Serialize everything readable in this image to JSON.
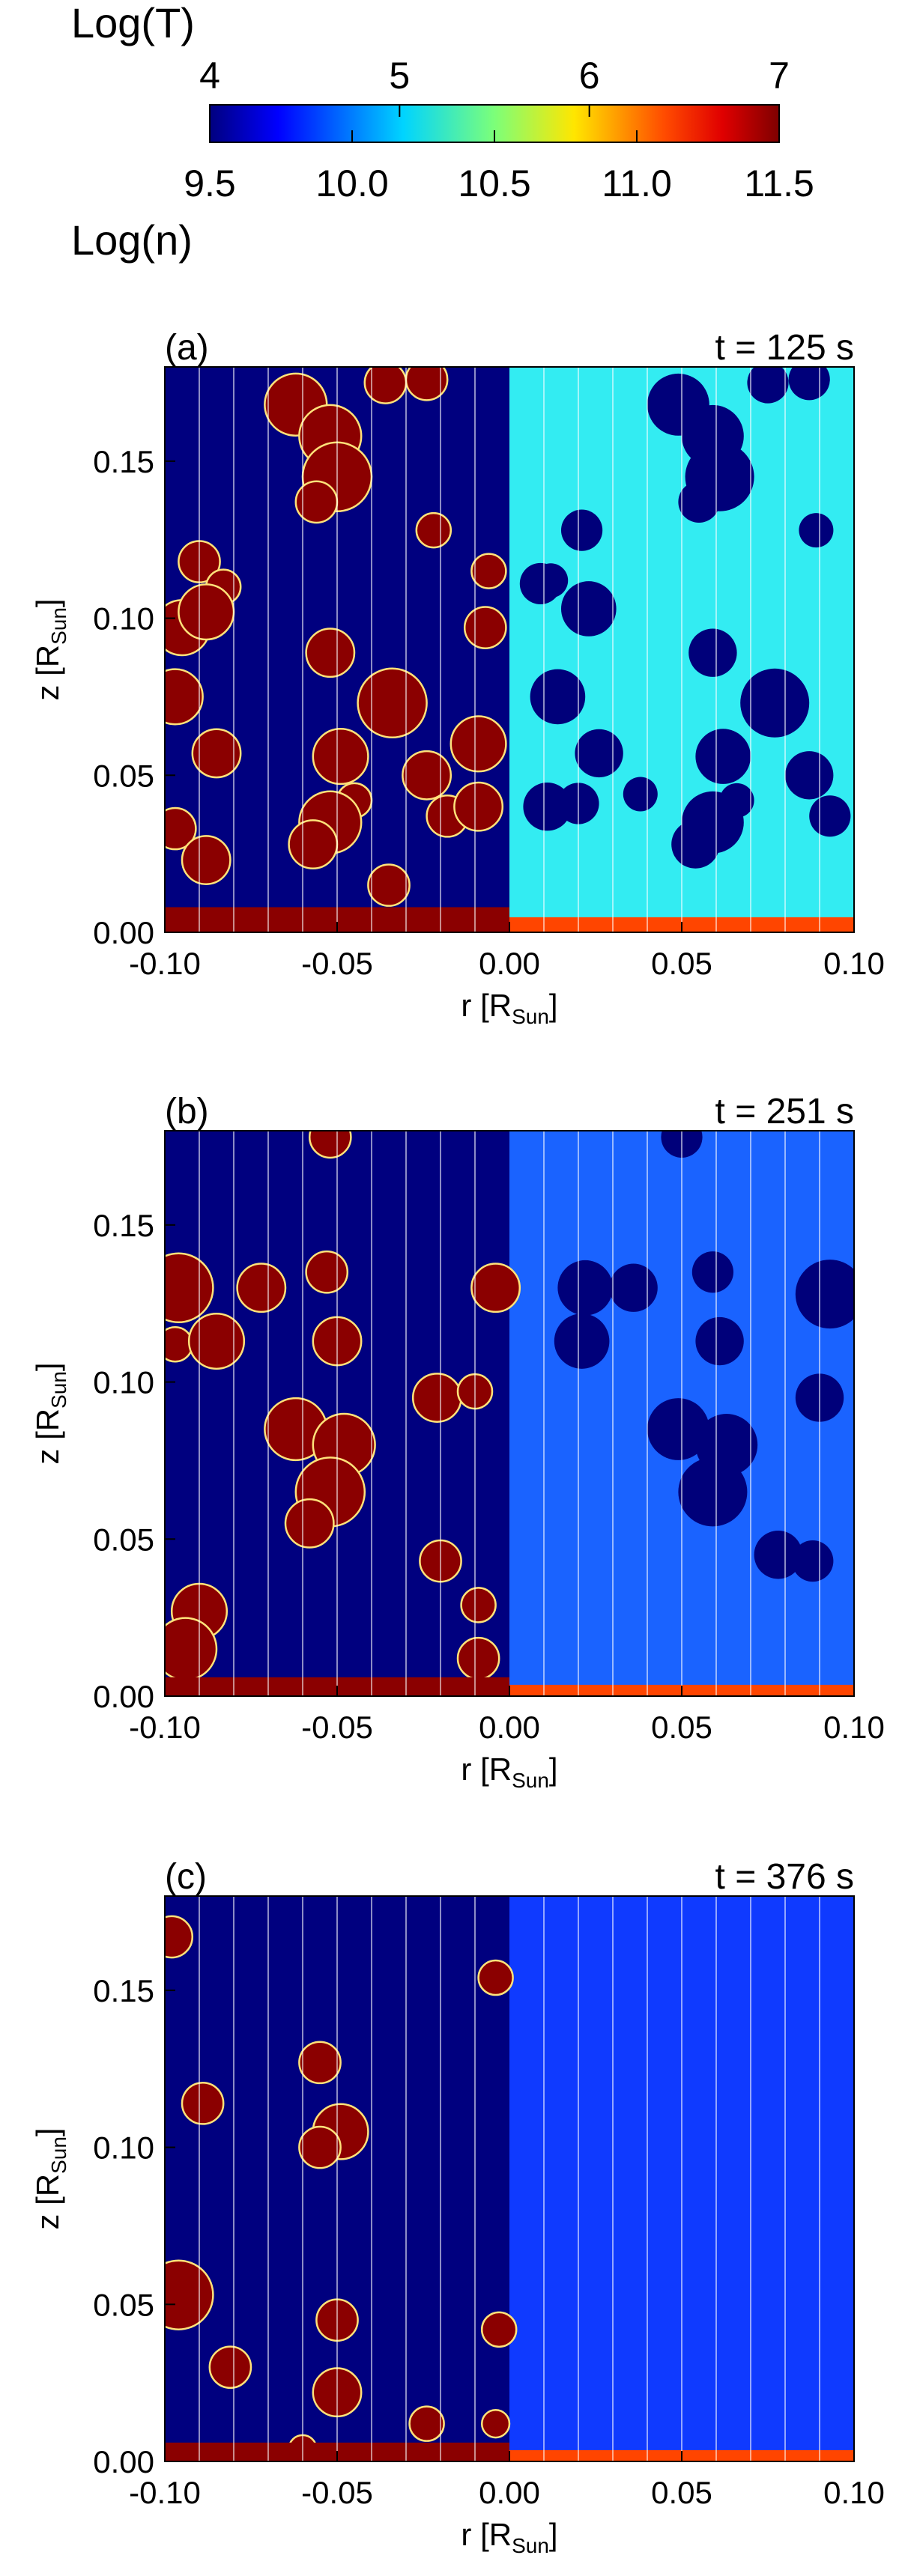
{
  "colorbar": {
    "top_label": "Log(T)",
    "bottom_label": "Log(n)",
    "top_ticks": [
      "4",
      "5",
      "6",
      "7"
    ],
    "bottom_ticks": [
      "9.5",
      "10.0",
      "10.5",
      "11.0",
      "11.5"
    ],
    "colormap": "rainbow (dark blue → cyan → yellow → red → dark red)",
    "T_range": [
      4,
      7
    ],
    "n_range": [
      9.5,
      11.5
    ]
  },
  "chart_data": [
    {
      "type": "heatmap",
      "panel": "(a)",
      "time_label": "t = 125 s",
      "xlabel": "r [R",
      "xlabel_sub": "Sun",
      "ylabel": "z [R",
      "ylabel_sub": "Sun",
      "xlim": [
        -0.1,
        0.1
      ],
      "ylim": [
        0.0,
        0.18
      ],
      "x_ticks": [
        "-0.10",
        "-0.05",
        "0.00",
        "0.05",
        "0.10"
      ],
      "y_ticks": [
        "0.00",
        "0.05",
        "0.10",
        "0.15"
      ],
      "left_half": "temperature",
      "right_half": "density",
      "field_lines_r": [
        -0.09,
        -0.08,
        -0.07,
        -0.06,
        -0.05,
        -0.04,
        -0.03,
        -0.02,
        -0.01,
        0.01,
        0.02,
        0.03,
        0.04,
        0.05,
        0.06,
        0.07,
        0.08,
        0.09
      ],
      "bg_temperature_logT": 4.0,
      "bg_density_logn": 10.3,
      "chromosphere_top_z": 0.008,
      "blobs": [
        {
          "r": -0.062,
          "z": 0.168,
          "rad": 0.009
        },
        {
          "r": -0.052,
          "z": 0.158,
          "rad": 0.009
        },
        {
          "r": -0.05,
          "z": 0.145,
          "rad": 0.01
        },
        {
          "r": -0.056,
          "z": 0.137,
          "rad": 0.006
        },
        {
          "r": -0.036,
          "z": 0.175,
          "rad": 0.006
        },
        {
          "r": -0.024,
          "z": 0.176,
          "rad": 0.006
        },
        {
          "r": -0.022,
          "z": 0.128,
          "rad": 0.005
        },
        {
          "r": -0.095,
          "z": 0.097,
          "rad": 0.008
        },
        {
          "r": -0.09,
          "z": 0.118,
          "rad": 0.006
        },
        {
          "r": -0.083,
          "z": 0.11,
          "rad": 0.005
        },
        {
          "r": -0.088,
          "z": 0.102,
          "rad": 0.008
        },
        {
          "r": -0.097,
          "z": 0.075,
          "rad": 0.008
        },
        {
          "r": -0.085,
          "z": 0.057,
          "rad": 0.007
        },
        {
          "r": -0.052,
          "z": 0.089,
          "rad": 0.007
        },
        {
          "r": -0.034,
          "z": 0.073,
          "rad": 0.01
        },
        {
          "r": -0.049,
          "z": 0.056,
          "rad": 0.008
        },
        {
          "r": -0.045,
          "z": 0.042,
          "rad": 0.005
        },
        {
          "r": -0.052,
          "z": 0.035,
          "rad": 0.009
        },
        {
          "r": -0.057,
          "z": 0.028,
          "rad": 0.007
        },
        {
          "r": -0.024,
          "z": 0.05,
          "rad": 0.007
        },
        {
          "r": -0.018,
          "z": 0.037,
          "rad": 0.006
        },
        {
          "r": -0.009,
          "z": 0.06,
          "rad": 0.008
        },
        {
          "r": -0.009,
          "z": 0.04,
          "rad": 0.007
        },
        {
          "r": -0.006,
          "z": 0.115,
          "rad": 0.005
        },
        {
          "r": -0.007,
          "z": 0.097,
          "rad": 0.006
        },
        {
          "r": -0.097,
          "z": 0.033,
          "rad": 0.006
        },
        {
          "r": -0.088,
          "z": 0.023,
          "rad": 0.007
        },
        {
          "r": -0.035,
          "z": 0.015,
          "rad": 0.006
        },
        {
          "r": 0.049,
          "z": 0.168,
          "rad": 0.009
        },
        {
          "r": 0.059,
          "z": 0.158,
          "rad": 0.009
        },
        {
          "r": 0.061,
          "z": 0.145,
          "rad": 0.01
        },
        {
          "r": 0.055,
          "z": 0.137,
          "rad": 0.006
        },
        {
          "r": 0.075,
          "z": 0.175,
          "rad": 0.006
        },
        {
          "r": 0.087,
          "z": 0.176,
          "rad": 0.006
        },
        {
          "r": 0.089,
          "z": 0.128,
          "rad": 0.005
        },
        {
          "r": 0.021,
          "z": 0.128,
          "rad": 0.006
        },
        {
          "r": 0.012,
          "z": 0.112,
          "rad": 0.005
        },
        {
          "r": 0.009,
          "z": 0.111,
          "rad": 0.006
        },
        {
          "r": 0.023,
          "z": 0.103,
          "rad": 0.008
        },
        {
          "r": 0.014,
          "z": 0.075,
          "rad": 0.008
        },
        {
          "r": 0.026,
          "z": 0.057,
          "rad": 0.007
        },
        {
          "r": 0.059,
          "z": 0.089,
          "rad": 0.007
        },
        {
          "r": 0.077,
          "z": 0.073,
          "rad": 0.01
        },
        {
          "r": 0.062,
          "z": 0.056,
          "rad": 0.008
        },
        {
          "r": 0.066,
          "z": 0.042,
          "rad": 0.005
        },
        {
          "r": 0.059,
          "z": 0.035,
          "rad": 0.009
        },
        {
          "r": 0.054,
          "z": 0.028,
          "rad": 0.007
        },
        {
          "r": 0.087,
          "z": 0.05,
          "rad": 0.007
        },
        {
          "r": 0.093,
          "z": 0.037,
          "rad": 0.006
        },
        {
          "r": 0.011,
          "z": 0.04,
          "rad": 0.007
        },
        {
          "r": 0.02,
          "z": 0.041,
          "rad": 0.006
        },
        {
          "r": 0.038,
          "z": 0.044,
          "rad": 0.005
        }
      ]
    },
    {
      "type": "heatmap",
      "panel": "(b)",
      "time_label": "t = 251 s",
      "xlabel": "r [R",
      "xlabel_sub": "Sun",
      "ylabel": "z [R",
      "ylabel_sub": "Sun",
      "xlim": [
        -0.1,
        0.1
      ],
      "ylim": [
        0.0,
        0.18
      ],
      "x_ticks": [
        "-0.10",
        "-0.05",
        "0.00",
        "0.05",
        "0.10"
      ],
      "y_ticks": [
        "0.00",
        "0.05",
        "0.10",
        "0.15"
      ],
      "left_half": "temperature",
      "right_half": "density",
      "bg_temperature_logT": 4.0,
      "bg_density_logn": 10.0,
      "chromosphere_top_z": 0.006,
      "blobs": [
        {
          "r": -0.052,
          "z": 0.178,
          "rad": 0.006
        },
        {
          "r": -0.096,
          "z": 0.13,
          "rad": 0.01
        },
        {
          "r": -0.097,
          "z": 0.112,
          "rad": 0.005
        },
        {
          "r": -0.085,
          "z": 0.113,
          "rad": 0.008
        },
        {
          "r": -0.072,
          "z": 0.13,
          "rad": 0.007
        },
        {
          "r": -0.053,
          "z": 0.135,
          "rad": 0.006
        },
        {
          "r": -0.05,
          "z": 0.113,
          "rad": 0.007
        },
        {
          "r": -0.062,
          "z": 0.085,
          "rad": 0.009
        },
        {
          "r": -0.048,
          "z": 0.08,
          "rad": 0.009
        },
        {
          "r": -0.052,
          "z": 0.065,
          "rad": 0.01
        },
        {
          "r": -0.058,
          "z": 0.055,
          "rad": 0.007
        },
        {
          "r": -0.021,
          "z": 0.095,
          "rad": 0.007
        },
        {
          "r": -0.01,
          "z": 0.097,
          "rad": 0.005
        },
        {
          "r": -0.02,
          "z": 0.043,
          "rad": 0.006
        },
        {
          "r": -0.004,
          "z": 0.13,
          "rad": 0.007
        },
        {
          "r": -0.009,
          "z": 0.029,
          "rad": 0.005
        },
        {
          "r": -0.009,
          "z": 0.012,
          "rad": 0.006
        },
        {
          "r": -0.09,
          "z": 0.027,
          "rad": 0.008
        },
        {
          "r": -0.094,
          "z": 0.015,
          "rad": 0.009
        },
        {
          "r": 0.05,
          "z": 0.178,
          "rad": 0.006
        },
        {
          "r": 0.059,
          "z": 0.135,
          "rad": 0.006
        },
        {
          "r": 0.061,
          "z": 0.113,
          "rad": 0.007
        },
        {
          "r": 0.049,
          "z": 0.085,
          "rad": 0.009
        },
        {
          "r": 0.063,
          "z": 0.08,
          "rad": 0.009
        },
        {
          "r": 0.059,
          "z": 0.065,
          "rad": 0.01
        },
        {
          "r": 0.09,
          "z": 0.095,
          "rad": 0.007
        },
        {
          "r": 0.022,
          "z": 0.13,
          "rad": 0.008
        },
        {
          "r": 0.036,
          "z": 0.13,
          "rad": 0.007
        },
        {
          "r": 0.093,
          "z": 0.128,
          "rad": 0.01
        },
        {
          "r": 0.088,
          "z": 0.043,
          "rad": 0.006
        },
        {
          "r": 0.021,
          "z": 0.113,
          "rad": 0.008
        },
        {
          "r": 0.078,
          "z": 0.045,
          "rad": 0.007
        }
      ]
    },
    {
      "type": "heatmap",
      "panel": "(c)",
      "time_label": "t = 376 s",
      "xlabel": "r [R",
      "xlabel_sub": "Sun",
      "ylabel": "z [R",
      "ylabel_sub": "Sun",
      "xlim": [
        -0.1,
        0.1
      ],
      "ylim": [
        0.0,
        0.18
      ],
      "x_ticks": [
        "-0.10",
        "-0.05",
        "0.00",
        "0.05",
        "0.10"
      ],
      "y_ticks": [
        "0.00",
        "0.05",
        "0.10",
        "0.15"
      ],
      "left_half": "temperature",
      "right_half": "density",
      "bg_temperature_logT": 4.0,
      "bg_density_logn": 9.8,
      "chromosphere_top_z": 0.006,
      "blobs": [
        {
          "r": -0.098,
          "z": 0.167,
          "rad": 0.006
        },
        {
          "r": -0.089,
          "z": 0.114,
          "rad": 0.006
        },
        {
          "r": -0.055,
          "z": 0.127,
          "rad": 0.006
        },
        {
          "r": -0.049,
          "z": 0.105,
          "rad": 0.008
        },
        {
          "r": -0.055,
          "z": 0.1,
          "rad": 0.006
        },
        {
          "r": -0.004,
          "z": 0.154,
          "rad": 0.005
        },
        {
          "r": -0.096,
          "z": 0.053,
          "rad": 0.01
        },
        {
          "r": -0.081,
          "z": 0.03,
          "rad": 0.006
        },
        {
          "r": -0.05,
          "z": 0.045,
          "rad": 0.006
        },
        {
          "r": -0.05,
          "z": 0.022,
          "rad": 0.007
        },
        {
          "r": -0.024,
          "z": 0.012,
          "rad": 0.005
        },
        {
          "r": -0.003,
          "z": 0.042,
          "rad": 0.005
        },
        {
          "r": -0.004,
          "z": 0.012,
          "rad": 0.004
        },
        {
          "r": -0.06,
          "z": 0.004,
          "rad": 0.004
        }
      ]
    }
  ]
}
